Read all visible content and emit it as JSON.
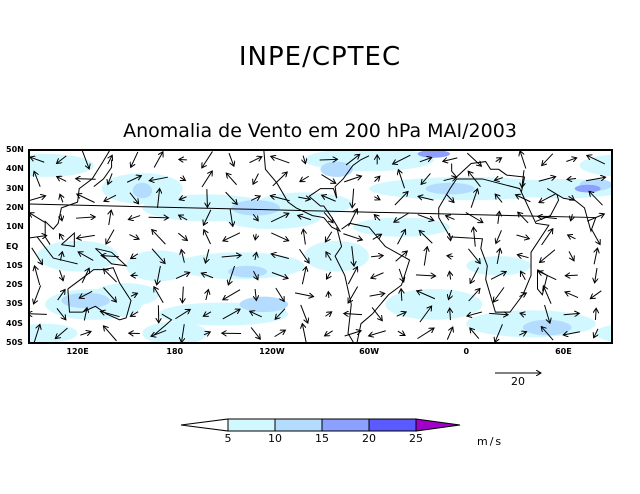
{
  "header": {
    "title": "INPE/CPTEC",
    "subtitle": "Anomalia de Vento em 200 hPa MAI/2003"
  },
  "map": {
    "lat_labels": [
      "50N",
      "40N",
      "30N",
      "20N",
      "10N",
      "EQ",
      "10S",
      "20S",
      "30S",
      "40S",
      "50S"
    ],
    "lon_labels": [
      "120E",
      "180",
      "120W",
      "60W",
      "0",
      "60E"
    ],
    "lon_label_values": [
      120,
      180,
      -120,
      -60,
      0,
      60
    ]
  },
  "reference_vector": {
    "label": "20",
    "units_value": 20
  },
  "colorbar": {
    "levels": [
      "5",
      "10",
      "15",
      "20",
      "25"
    ],
    "units": "m/s",
    "colors": [
      "#ffffff",
      "#d2f8ff",
      "#b4dcff",
      "#8ca0ff",
      "#5a5aff",
      "#a000c8"
    ]
  }
}
